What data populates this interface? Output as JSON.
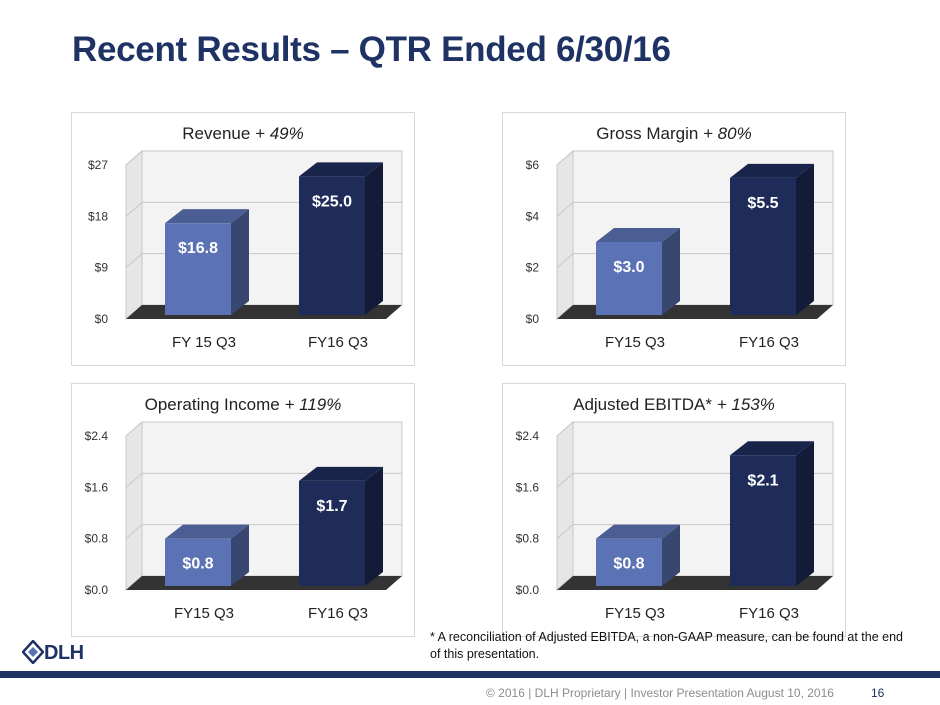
{
  "slide": {
    "title": "Recent Results – QTR Ended 6/30/16",
    "footnote": "* A reconciliation of Adjusted EBITDA, a non-GAAP measure, can be found at the end of this presentation.",
    "footer": "© 2016 | DLH Proprietary | Investor Presentation August 10, 2016",
    "page_number": "16",
    "logo_text": "DLH"
  },
  "colors": {
    "title": "#1f3264",
    "bar_light": "#5b73b4",
    "bar_dark": "#1f2c5a",
    "floor": "#333333",
    "grid": "#c8c8c8",
    "wall": "#f3f3f3"
  },
  "chart_data": [
    {
      "type": "bar",
      "title": "Revenue",
      "title_change": "+ 49%",
      "categories": [
        "FY 15 Q3",
        "FY16 Q3"
      ],
      "values": [
        16.8,
        25.0
      ],
      "data_labels": [
        "$16.8",
        "$25.0"
      ],
      "yticks": [
        "$0",
        "$9",
        "$18",
        "$27"
      ],
      "ylim": [
        0,
        27
      ]
    },
    {
      "type": "bar",
      "title": "Gross Margin",
      "title_change": "+ 80%",
      "categories": [
        "FY15 Q3",
        "FY16 Q3"
      ],
      "values": [
        3.0,
        5.5
      ],
      "data_labels": [
        "$3.0",
        "$5.5"
      ],
      "yticks": [
        "$0",
        "$2",
        "$4",
        "$6"
      ],
      "ylim": [
        0,
        6
      ]
    },
    {
      "type": "bar",
      "title": "Operating Income",
      "title_change": "+ 119%",
      "categories": [
        "FY15 Q3",
        "FY16 Q3"
      ],
      "values": [
        0.8,
        1.7
      ],
      "data_labels": [
        "$0.8",
        "$1.7"
      ],
      "yticks": [
        "$0.0",
        "$0.8",
        "$1.6",
        "$2.4"
      ],
      "ylim": [
        0,
        2.4
      ]
    },
    {
      "type": "bar",
      "title": "Adjusted EBITDA*",
      "title_change": "+ 153%",
      "categories": [
        "FY15 Q3",
        "FY16 Q3"
      ],
      "values": [
        0.8,
        2.1
      ],
      "data_labels": [
        "$0.8",
        "$2.1"
      ],
      "yticks": [
        "$0.0",
        "$0.8",
        "$1.6",
        "$2.4"
      ],
      "ylim": [
        0,
        2.4
      ]
    }
  ]
}
